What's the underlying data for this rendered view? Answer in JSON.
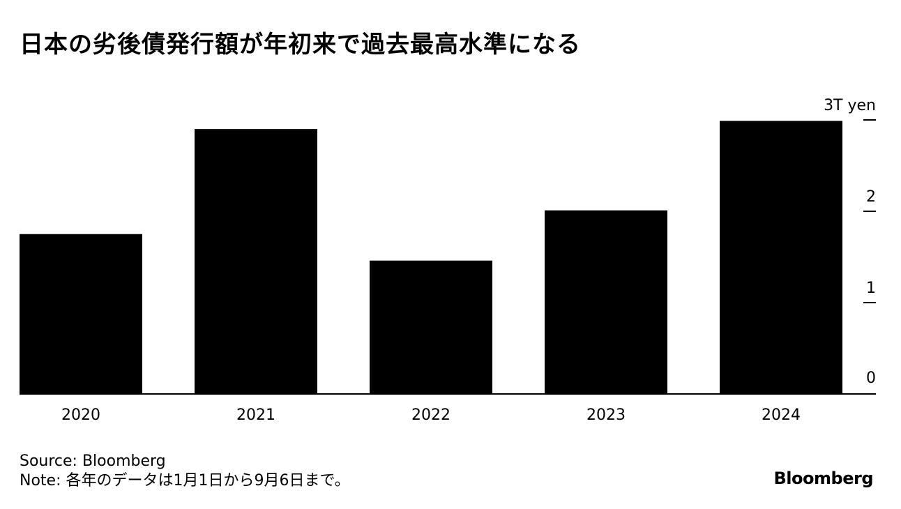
{
  "title": "日本の劣後債発行額が年初来で過去最高水準になる",
  "source": "Source: Bloomberg",
  "note": "Note: 各年のデータは1月1日から9月6日まで。",
  "brand": "Bloomberg",
  "colors": {
    "bar": "#000000",
    "axis": "#000000",
    "background": "#ffffff"
  },
  "chart_data": {
    "type": "bar",
    "title": "日本の劣後債発行額が年初来で過去最高水準になる",
    "categories": [
      "2020",
      "2021",
      "2022",
      "2023",
      "2024"
    ],
    "values": [
      1.75,
      2.9,
      1.46,
      2.01,
      2.99
    ],
    "unit_label": "3T yen",
    "yticks": [
      0,
      1,
      2,
      3
    ],
    "ytick_labels": [
      "0",
      "1",
      "2",
      "3T yen"
    ],
    "ylim": [
      0,
      3
    ],
    "xlabel": "",
    "ylabel": "",
    "grid": false,
    "yaxis_position": "right",
    "legend": "none"
  }
}
